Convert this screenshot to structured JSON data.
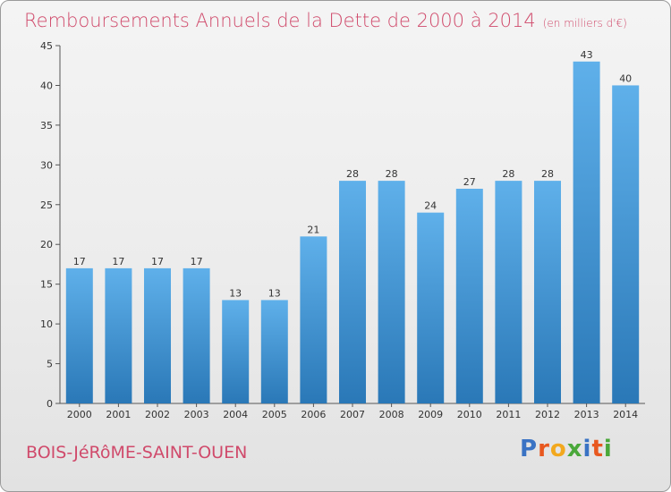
{
  "header": {
    "title": "Remboursements Annuels de la Dette de 2000 à 2014",
    "unit": "(en milliers d'€)"
  },
  "footer": {
    "commune": "BOIS-JéRôME-SAINT-OUEN",
    "logo_text": "Proxiti"
  },
  "colors": {
    "title": "#d04a6b",
    "bar_top": "#5fb0ea",
    "bar_bottom": "#2a78b7"
  },
  "chart_data": {
    "type": "bar",
    "title": "Remboursements Annuels de la Dette de 2000 à 2014",
    "xlabel": "",
    "ylabel": "",
    "categories": [
      "2000",
      "2001",
      "2002",
      "2003",
      "2004",
      "2005",
      "2006",
      "2007",
      "2008",
      "2009",
      "2010",
      "2011",
      "2012",
      "2013",
      "2014"
    ],
    "values": [
      17,
      17,
      17,
      17,
      13,
      13,
      21,
      28,
      28,
      24,
      27,
      28,
      28,
      43,
      40
    ],
    "ylim": [
      0,
      45
    ],
    "yticks": [
      0,
      5,
      10,
      15,
      20,
      25,
      30,
      35,
      40,
      45
    ],
    "grid": false,
    "data_labels": true
  }
}
